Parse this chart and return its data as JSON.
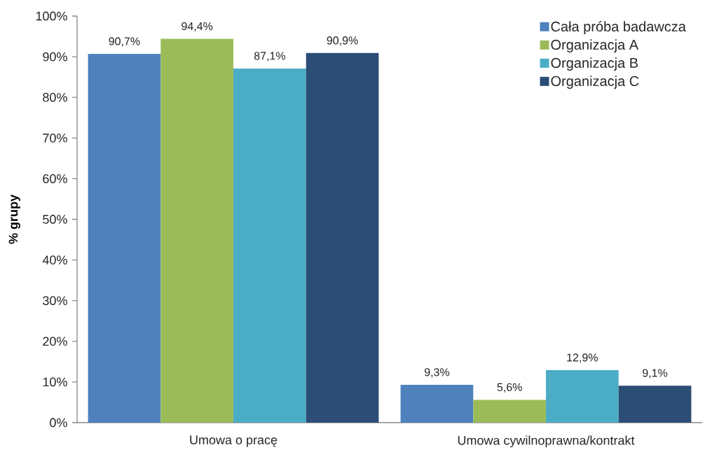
{
  "chart_data": {
    "type": "bar",
    "ylabel": "% grupy",
    "categories": [
      "Umowa o pracę",
      "Umowa cywilnoprawna/kontrakt"
    ],
    "series": [
      {
        "name": "Cała próba badawcza",
        "color": "#4f81bd",
        "values": [
          90.7,
          9.3
        ],
        "value_labels": [
          "90,7%",
          "9,3%"
        ]
      },
      {
        "name": "Organizacja A",
        "color": "#9bbb59",
        "values": [
          94.4,
          5.6
        ],
        "value_labels": [
          "94,4%",
          "5,6%"
        ]
      },
      {
        "name": "Organizacja B",
        "color": "#4bacc6",
        "values": [
          87.1,
          12.9
        ],
        "value_labels": [
          "87,1%",
          "12,9%"
        ]
      },
      {
        "name": "Organizacja C",
        "color": "#2c4d75",
        "values": [
          90.9,
          9.1
        ],
        "value_labels": [
          "90,9%",
          "9,1%"
        ]
      }
    ],
    "ylim": [
      0,
      100
    ],
    "yticks": [
      {
        "value": 0,
        "label": "0%"
      },
      {
        "value": 10,
        "label": "10%"
      },
      {
        "value": 20,
        "label": "20%"
      },
      {
        "value": 30,
        "label": "30%"
      },
      {
        "value": 40,
        "label": "40%"
      },
      {
        "value": 50,
        "label": "50%"
      },
      {
        "value": 60,
        "label": "60%"
      },
      {
        "value": 70,
        "label": "70%"
      },
      {
        "value": 80,
        "label": "80%"
      },
      {
        "value": 90,
        "label": "90%"
      },
      {
        "value": 100,
        "label": "100%"
      }
    ],
    "legend": "top right"
  }
}
